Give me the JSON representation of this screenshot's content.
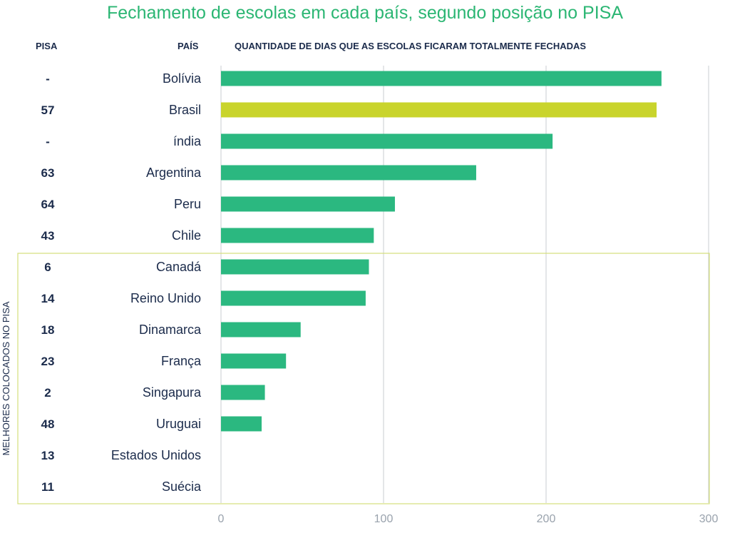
{
  "chart_data": {
    "type": "bar",
    "orientation": "horizontal",
    "title": "Fechamento de escolas em cada país, segundo posição no PISA",
    "rank_header": "PISA",
    "category_header": "PAÍS",
    "value_header": "QUANTIDADE DE DIAS QUE AS ESCOLAS FICARAM TOTALMENTE FECHADAS",
    "group_label": "MELHORES COLOCADOS NO PISA",
    "categories": [
      "Bolívia",
      "Brasil",
      "índia",
      "Argentina",
      "Peru",
      "Chile",
      "Canadá",
      "Reino Unido",
      "Dinamarca",
      "França",
      "Singapura",
      "Uruguai",
      "Estados Unidos",
      "Suécia"
    ],
    "pisa_ranks": [
      "-",
      "57",
      "-",
      "63",
      "64",
      "43",
      "6",
      "14",
      "18",
      "23",
      "2",
      "48",
      "13",
      "11"
    ],
    "values": [
      271,
      268,
      204,
      157,
      107,
      94,
      91,
      89,
      49,
      40,
      27,
      25,
      0,
      0
    ],
    "highlight": "Brasil",
    "group_members": [
      "Canadá",
      "Reino Unido",
      "Dinamarca",
      "França",
      "Singapura",
      "Uruguai",
      "Estados Unidos",
      "Suécia"
    ],
    "xlim": [
      0,
      300
    ],
    "xticks": [
      0,
      100,
      200,
      300
    ],
    "grid": true,
    "colors": {
      "bar": "#2bb880",
      "highlight": "#c9d42c",
      "group_box": "#d4de7c",
      "grid": "#c8ccd0",
      "text": "#1b2b4b",
      "title": "#2bb673"
    }
  }
}
